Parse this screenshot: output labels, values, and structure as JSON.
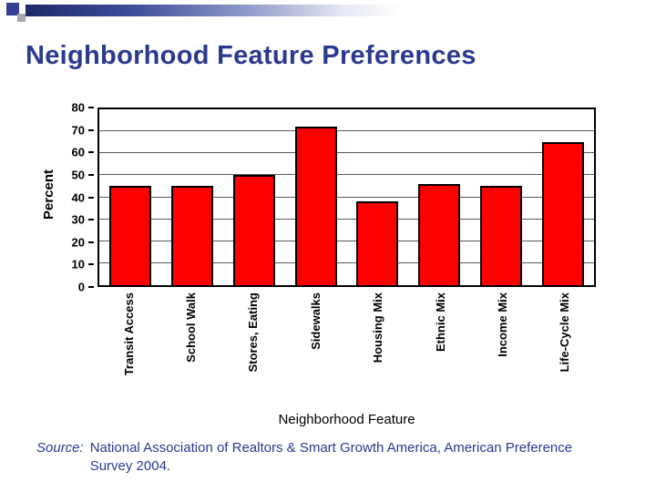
{
  "slide": {
    "title": "Neighborhood Feature Preferences",
    "source": {
      "label": "Source:",
      "text": "National Association of Realtors & Smart Growth America, American Preference Survey 2004."
    }
  },
  "colors": {
    "title_text": "#2B3990",
    "source_text": "#2B3990",
    "bar_fill": "#FF0000",
    "bar_border": "#000000",
    "gridline": "#595959",
    "decor_navy": "#333F92",
    "decor_gray": "#A6A6AE"
  },
  "chart_data": {
    "type": "bar",
    "title": "",
    "categories": [
      "Transit Access",
      "School Walk",
      "Stores, Eating",
      "Sidewalks",
      "Housing Mix",
      "Ethnic Mix",
      "Income Mix",
      "Life-Cycle Mix"
    ],
    "values": [
      45,
      45,
      50,
      72,
      38,
      46,
      45,
      65
    ],
    "xlabel": "Neighborhood Feature",
    "ylabel": "Percent",
    "ylim": [
      0,
      80
    ],
    "ytick_step": 10,
    "grid": true,
    "legend": false,
    "bar_color": "#FF0000",
    "bar_border_color": "#000000"
  }
}
